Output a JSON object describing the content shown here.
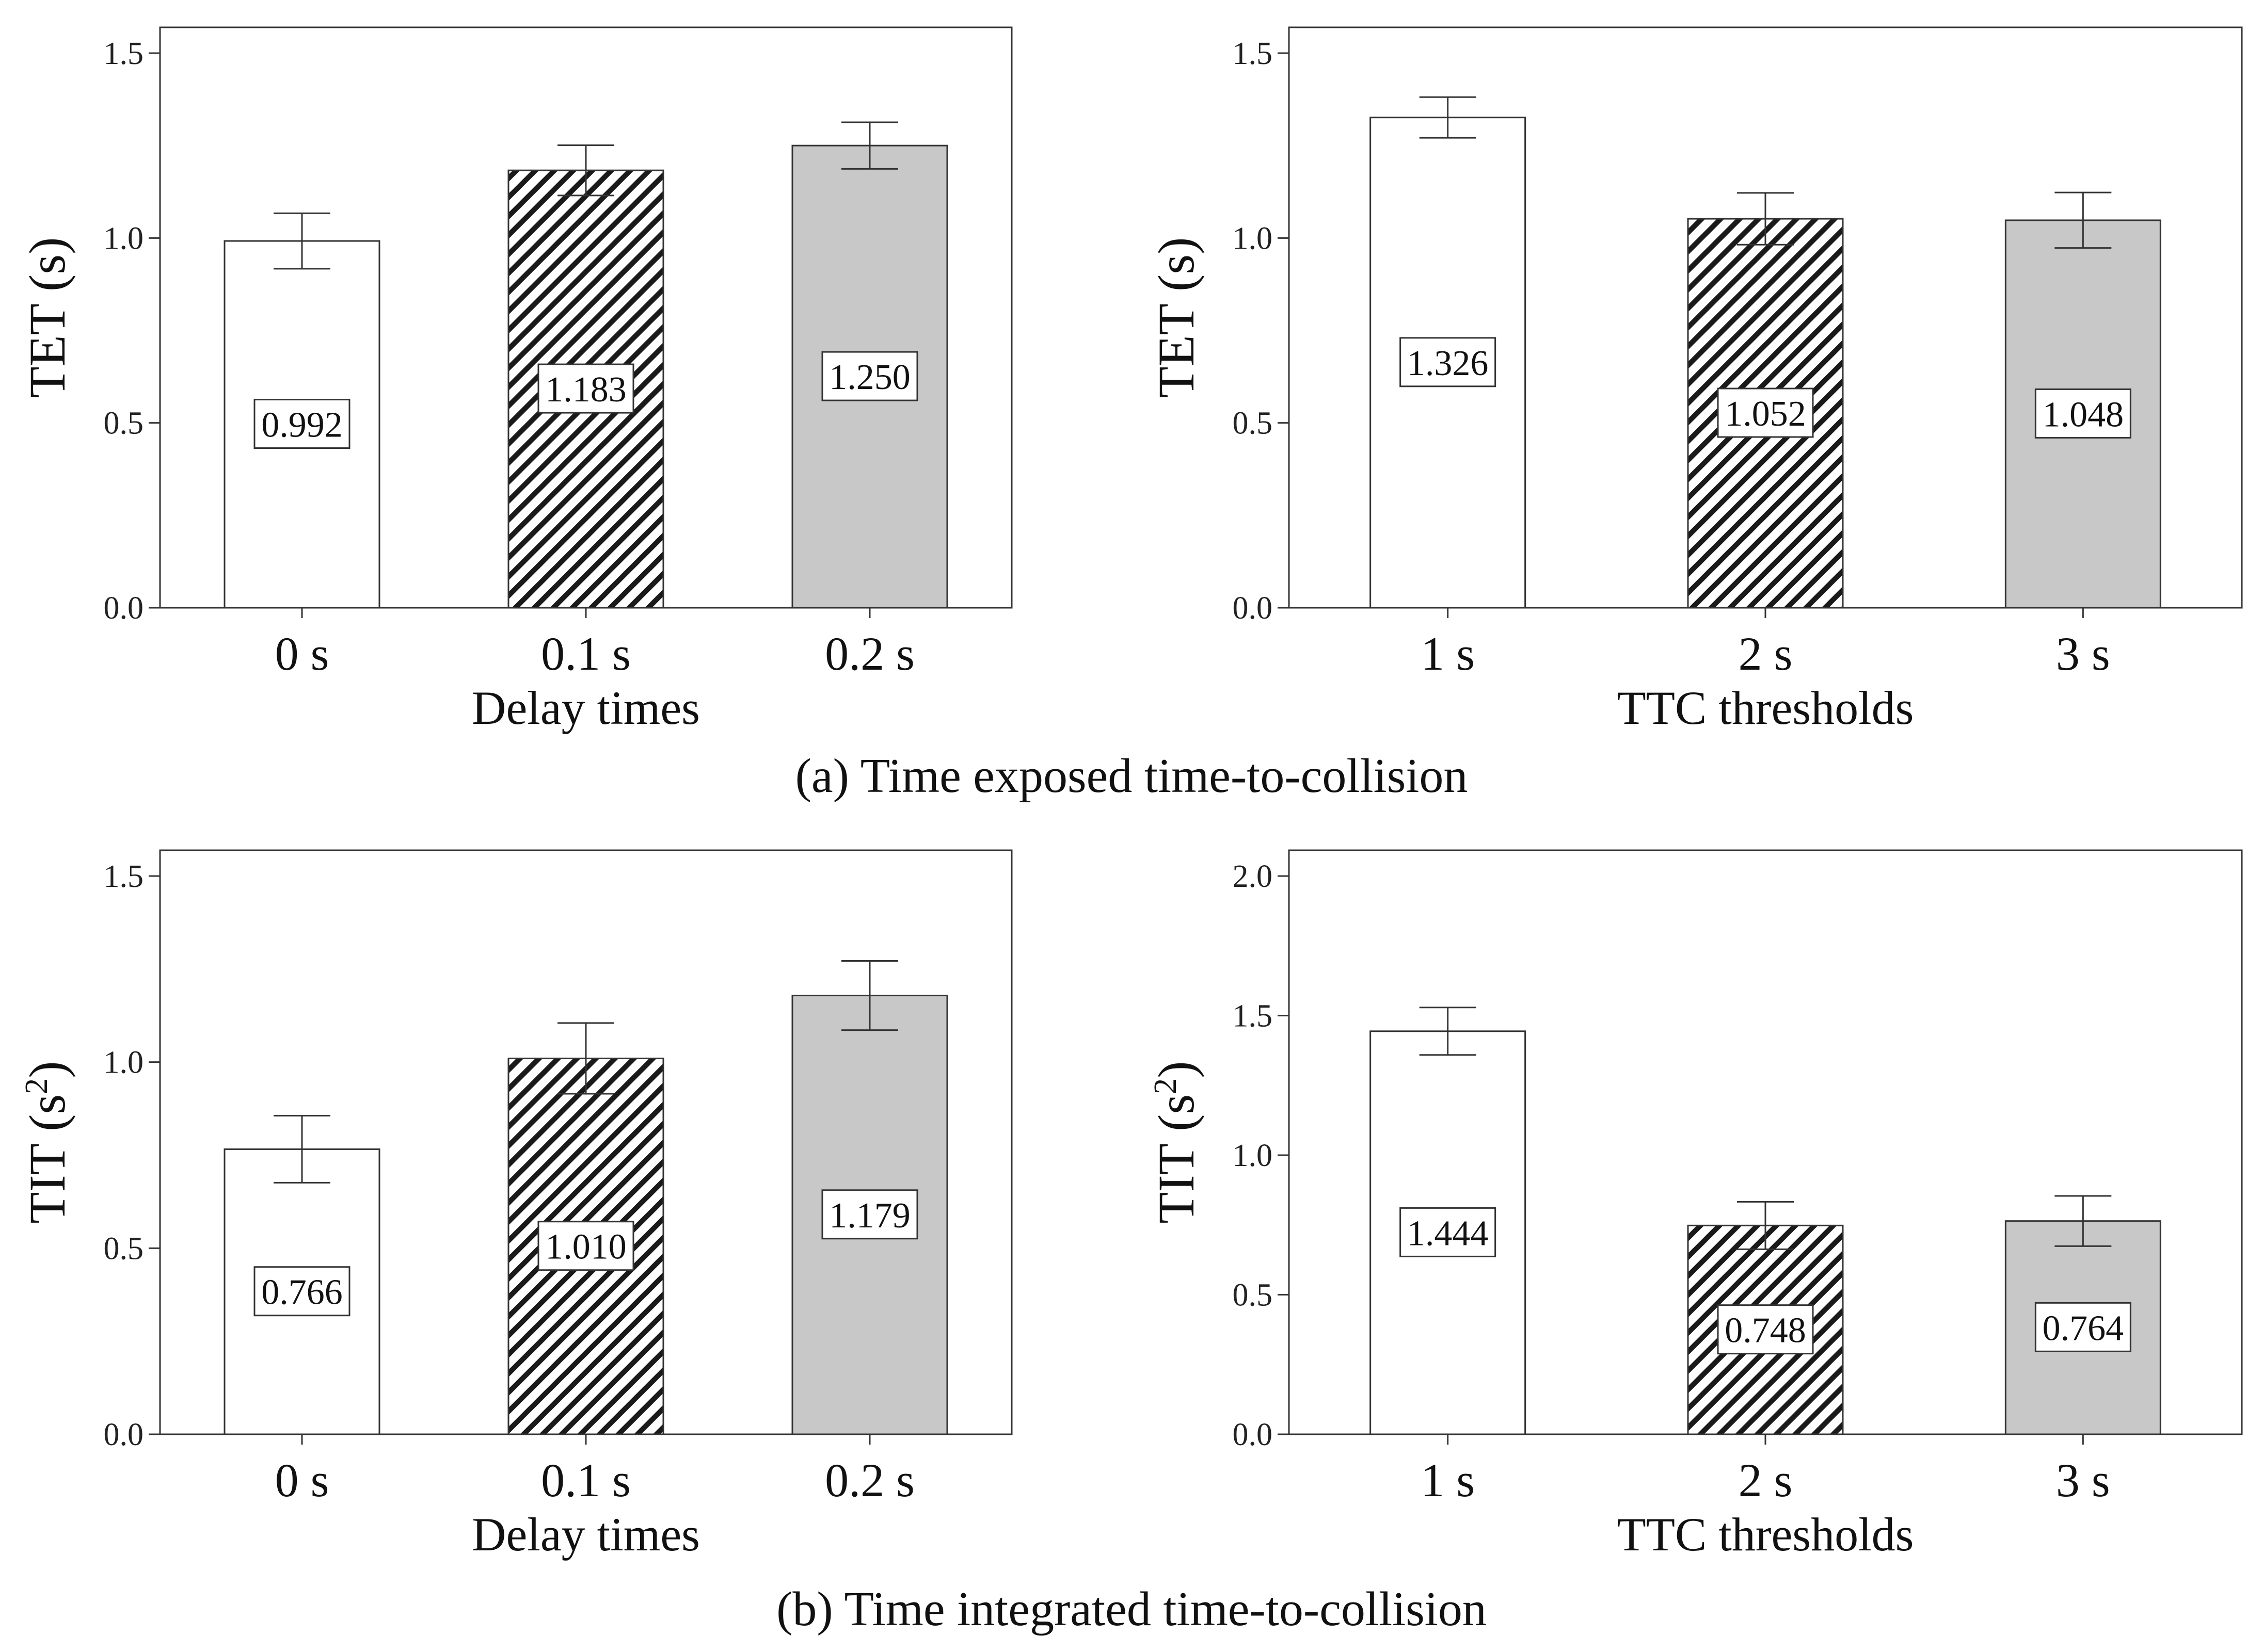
{
  "captions": {
    "a": "(a) Time exposed time-to-collision",
    "b": "(b) Time integrated time-to-collision"
  },
  "chart_data": [
    {
      "type": "bar",
      "categories": [
        "0 s",
        "0.1 s",
        "0.2 s"
      ],
      "values": [
        0.992,
        1.183,
        1.25
      ],
      "error": [
        0.075,
        0.068,
        0.063
      ],
      "value_labels": [
        "0.992",
        "1.183",
        "1.250"
      ],
      "fills": [
        "white",
        "hatched",
        "gray"
      ],
      "xlabel": "Delay times",
      "ylabel": "TET (s)",
      "ylim": [
        0,
        1.5
      ],
      "yticks": [
        "0.0",
        "0.5",
        "1.0",
        "1.5"
      ],
      "grid": false
    },
    {
      "type": "bar",
      "categories": [
        "1 s",
        "2 s",
        "3 s"
      ],
      "values": [
        1.326,
        1.052,
        1.048
      ],
      "error": [
        0.055,
        0.07,
        0.075
      ],
      "value_labels": [
        "1.326",
        "1.052",
        "1.048"
      ],
      "fills": [
        "white",
        "hatched",
        "gray"
      ],
      "xlabel": "TTC thresholds",
      "ylabel": "TET (s)",
      "ylim": [
        0,
        1.5
      ],
      "yticks": [
        "0.0",
        "0.5",
        "1.0",
        "1.5"
      ],
      "grid": false
    },
    {
      "type": "bar",
      "categories": [
        "0 s",
        "0.1 s",
        "0.2 s"
      ],
      "values": [
        0.766,
        1.01,
        1.179
      ],
      "error": [
        0.09,
        0.095,
        0.093
      ],
      "value_labels": [
        "0.766",
        "1.010",
        "1.179"
      ],
      "fills": [
        "white",
        "hatched",
        "gray"
      ],
      "xlabel": "Delay times",
      "ylabel": "TIT (s2)",
      "ylim": [
        0,
        1.5
      ],
      "yticks": [
        "0.0",
        "0.5",
        "1.0",
        "1.5"
      ],
      "grid": false
    },
    {
      "type": "bar",
      "categories": [
        "1 s",
        "2 s",
        "3 s"
      ],
      "values": [
        1.444,
        0.748,
        0.764
      ],
      "error": [
        0.085,
        0.085,
        0.09
      ],
      "value_labels": [
        "1.444",
        "0.748",
        "0.764"
      ],
      "fills": [
        "white",
        "hatched",
        "gray"
      ],
      "xlabel": "TTC thresholds",
      "ylabel": "TIT (s2)",
      "ylim": [
        0,
        2.0
      ],
      "yticks": [
        "0.0",
        "0.5",
        "1.0",
        "1.5",
        "2.0"
      ],
      "grid": false
    }
  ]
}
